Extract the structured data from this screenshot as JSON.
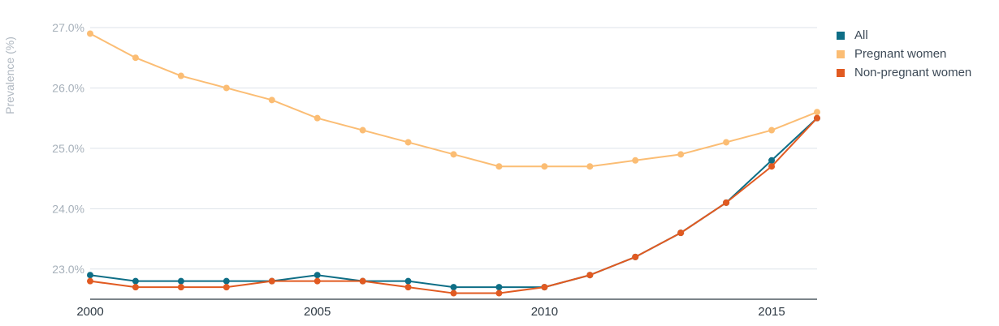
{
  "chart_data": {
    "type": "line",
    "title": "",
    "xlabel": "",
    "ylabel": "Prevalence (%)",
    "x": [
      2000,
      2001,
      2002,
      2003,
      2004,
      2005,
      2006,
      2007,
      2008,
      2009,
      2010,
      2011,
      2012,
      2013,
      2014,
      2015,
      2016
    ],
    "xticks": [
      2000,
      2005,
      2010,
      2015
    ],
    "xtick_labels": [
      "2000",
      "2005",
      "2010",
      "2015"
    ],
    "xlim": [
      2000,
      2016
    ],
    "ylim": [
      22.5,
      27.0
    ],
    "yticks": [
      23.0,
      24.0,
      25.0,
      26.0,
      27.0
    ],
    "ytick_labels": [
      "23.0%",
      "24.0%",
      "25.0%",
      "26.0%",
      "27.0%"
    ],
    "grid": true,
    "legend_position": "top-right",
    "series": [
      {
        "name": "All",
        "color": "#0e6e86",
        "values": [
          22.9,
          22.8,
          22.8,
          22.8,
          22.8,
          22.9,
          22.8,
          22.8,
          22.7,
          22.7,
          22.7,
          22.9,
          23.2,
          23.6,
          24.1,
          24.8,
          25.5
        ]
      },
      {
        "name": "Pregnant women",
        "color": "#fbbd74",
        "values": [
          26.9,
          26.5,
          26.2,
          26.0,
          25.8,
          25.5,
          25.3,
          25.1,
          24.9,
          24.7,
          24.7,
          24.7,
          24.8,
          24.9,
          25.1,
          25.3,
          25.6
        ]
      },
      {
        "name": "Non-pregnant women",
        "color": "#e15a21",
        "values": [
          22.8,
          22.7,
          22.7,
          22.7,
          22.8,
          22.8,
          22.8,
          22.7,
          22.6,
          22.6,
          22.7,
          22.9,
          23.2,
          23.6,
          24.1,
          24.7,
          25.5
        ]
      }
    ]
  }
}
